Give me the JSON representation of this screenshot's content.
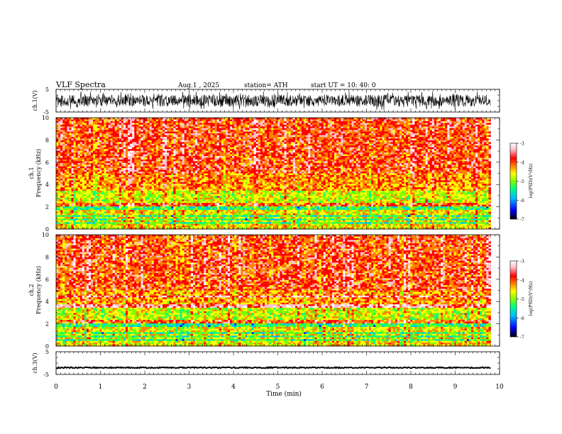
{
  "header": {
    "title": "VLF  Spectra",
    "date": "Aug.1  , 2025",
    "station": "station= ATH",
    "start": "start  UT  =    10: 40: 0"
  },
  "colors": {
    "spectrogram_scale": [
      "#000000",
      "#0000ff",
      "#00bfff",
      "#00ff7f",
      "#7fff00",
      "#ffff00",
      "#ff8000",
      "#ff0000",
      "#ffc0cb",
      "#ffffff"
    ],
    "trace": "#000000"
  },
  "chart_data": [
    {
      "type": "line",
      "name": "ch1-waveform",
      "ylabel": "ch.1(V)",
      "ylim": [
        -5,
        5
      ],
      "yticks": [
        "5",
        "-5"
      ],
      "xlim": [
        0,
        10
      ],
      "data_end_min": 9.8,
      "amplitude_range_v": [
        -4.5,
        5
      ]
    },
    {
      "type": "heatmap",
      "name": "ch1-spectrogram",
      "ylabel_channel": "ch.1",
      "ylabel": "Frequency  (kHz)",
      "ylim": [
        0,
        10
      ],
      "yticks": [
        "0",
        "2",
        "4",
        "6",
        "8",
        "10"
      ],
      "xlim": [
        0,
        10
      ],
      "data_end_min": 9.8,
      "colorbar": {
        "label": "log(PSD)(V²/Hz)",
        "range": [
          -7,
          -3
        ],
        "ticks": [
          "-3",
          "-4",
          "-5",
          "-6",
          "-7"
        ]
      },
      "horizontal_bands_khz": [
        0.4,
        0.7,
        1.0,
        1.4,
        1.7,
        2.1,
        2.3
      ]
    },
    {
      "type": "heatmap",
      "name": "ch2-spectrogram",
      "ylabel_channel": "ch.2",
      "ylabel": "Frequency  (kHz)",
      "ylim": [
        0,
        10
      ],
      "yticks": [
        "0",
        "2",
        "4",
        "6",
        "8",
        "10"
      ],
      "xlim": [
        0,
        10
      ],
      "data_end_min": 9.8,
      "colorbar": {
        "label": "log(PSD)(V²/Hz)",
        "range": [
          -7,
          -3
        ],
        "ticks": [
          "-3",
          "-4",
          "-5",
          "-6",
          "-7"
        ]
      },
      "horizontal_bands_khz": [
        0.4,
        0.7,
        1.0,
        1.4,
        1.7,
        2.1,
        2.3,
        3.6,
        4.4
      ]
    },
    {
      "type": "line",
      "name": "ch3-waveform",
      "ylabel": "ch.3(V)",
      "ylim": [
        -5,
        5
      ],
      "yticks": [
        "5",
        "-5"
      ],
      "xlim": [
        0,
        10
      ],
      "data_end_min": 9.8,
      "level_v": -2.0
    }
  ],
  "xaxis": {
    "label": "Time  (min)",
    "ticks": [
      "0",
      "1",
      "2",
      "3",
      "4",
      "5",
      "6",
      "7",
      "8",
      "9",
      "10"
    ]
  }
}
